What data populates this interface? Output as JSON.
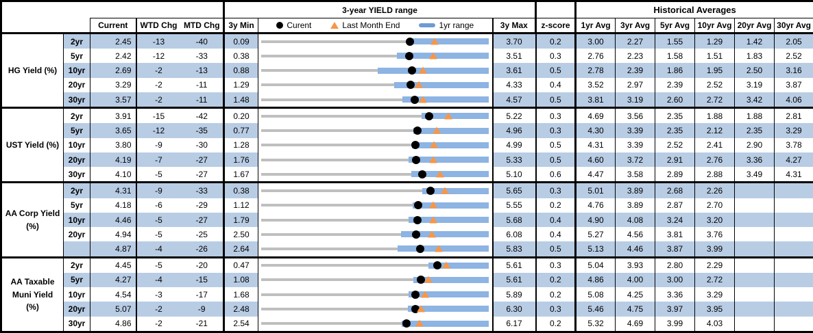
{
  "header": {
    "range_title": "3-year YIELD range",
    "hist_title": "Historical Averages",
    "current": "Current",
    "wtd": "WTD Chg",
    "mtd": "MTD Chg",
    "min": "3y Min",
    "max": "3y Max",
    "z": "z-score",
    "avg_cols": [
      "1yr Avg",
      "3yr Avg",
      "5yr Avg",
      "10yr Avg",
      "20yr Avg",
      "30yr Avg"
    ],
    "legend_current": "Curent",
    "legend_last_month": "Last Month End",
    "legend_range": "1yr range"
  },
  "colors": {
    "row_shade": "#b8cce4",
    "bar_blue": "#8db4e2",
    "track_gray": "#bfbfbf",
    "triangle_orange": "#f79646",
    "dot_black": "#000000"
  },
  "chart_data": {
    "type": "table",
    "note": "Each row has a bullet chart spanning 3y Min to 3y Max; blue bar = 1yr range (high = 3y max), black dot = current, orange triangle = last month end.",
    "sections": [
      {
        "label": "HG Yield (%)",
        "rows": [
          {
            "tenor": "2yr",
            "current": "2.45",
            "wtd": "-13",
            "mtd": "-40",
            "min": "0.09",
            "max": "3.70",
            "z": "0.2",
            "avgs": [
              "3.00",
              "2.27",
              "1.55",
              "1.29",
              "1.42",
              "2.05"
            ],
            "bar": {
              "min": 0.09,
              "max": 3.7,
              "cur": 2.45,
              "lm": 2.85,
              "lo": 2.47
            }
          },
          {
            "tenor": "5yr",
            "current": "2.42",
            "wtd": "-12",
            "mtd": "-33",
            "min": "0.38",
            "max": "3.51",
            "z": "0.3",
            "avgs": [
              "2.76",
              "2.23",
              "1.58",
              "1.51",
              "1.83",
              "2.52"
            ],
            "bar": {
              "min": 0.38,
              "max": 3.51,
              "cur": 2.42,
              "lm": 2.75,
              "lo": 2.25
            }
          },
          {
            "tenor": "10yr",
            "current": "2.69",
            "wtd": "-2",
            "mtd": "-13",
            "min": "0.88",
            "max": "3.61",
            "z": "0.5",
            "avgs": [
              "2.78",
              "2.39",
              "1.86",
              "1.95",
              "2.50",
              "3.16"
            ],
            "bar": {
              "min": 0.88,
              "max": 3.61,
              "cur": 2.69,
              "lm": 2.82,
              "lo": 2.28
            }
          },
          {
            "tenor": "20yr",
            "current": "3.29",
            "wtd": "-2",
            "mtd": "-11",
            "min": "1.29",
            "max": "4.33",
            "z": "0.4",
            "avgs": [
              "3.52",
              "2.97",
              "2.39",
              "2.52",
              "3.19",
              "3.87"
            ],
            "bar": {
              "min": 1.29,
              "max": 4.33,
              "cur": 3.29,
              "lm": 3.4,
              "lo": 3.07
            }
          },
          {
            "tenor": "30yr",
            "current": "3.57",
            "wtd": "-2",
            "mtd": "-11",
            "min": "1.48",
            "max": "4.57",
            "z": "0.5",
            "avgs": [
              "3.81",
              "3.19",
              "2.60",
              "2.72",
              "3.42",
              "4.06"
            ],
            "bar": {
              "min": 1.48,
              "max": 4.57,
              "cur": 3.57,
              "lm": 3.68,
              "lo": 3.4
            }
          }
        ]
      },
      {
        "label": "UST Yield (%)",
        "rows": [
          {
            "tenor": "2yr",
            "current": "3.91",
            "wtd": "-15",
            "mtd": "-42",
            "min": "0.20",
            "max": "5.22",
            "z": "0.3",
            "avgs": [
              "4.69",
              "3.56",
              "2.35",
              "1.88",
              "1.88",
              "2.81"
            ],
            "bar": {
              "min": 0.2,
              "max": 5.22,
              "cur": 3.91,
              "lm": 4.33,
              "lo": 3.75
            }
          },
          {
            "tenor": "5yr",
            "current": "3.65",
            "wtd": "-12",
            "mtd": "-35",
            "min": "0.77",
            "max": "4.96",
            "z": "0.3",
            "avgs": [
              "4.30",
              "3.39",
              "2.35",
              "2.12",
              "2.35",
              "3.29"
            ],
            "bar": {
              "min": 0.77,
              "max": 4.96,
              "cur": 3.65,
              "lm": 4.0,
              "lo": 3.57
            }
          },
          {
            "tenor": "10yr",
            "current": "3.80",
            "wtd": "-9",
            "mtd": "-30",
            "min": "1.28",
            "max": "4.99",
            "z": "0.5",
            "avgs": [
              "4.31",
              "3.39",
              "2.52",
              "2.41",
              "2.90",
              "3.78"
            ],
            "bar": {
              "min": 1.28,
              "max": 4.99,
              "cur": 3.8,
              "lm": 4.1,
              "lo": 3.74
            }
          },
          {
            "tenor": "20yr",
            "current": "4.19",
            "wtd": "-7",
            "mtd": "-27",
            "min": "1.76",
            "max": "5.33",
            "z": "0.5",
            "avgs": [
              "4.60",
              "3.72",
              "2.91",
              "2.76",
              "3.36",
              "4.27"
            ],
            "bar": {
              "min": 1.76,
              "max": 5.33,
              "cur": 4.19,
              "lm": 4.46,
              "lo": 4.08
            }
          },
          {
            "tenor": "30yr",
            "current": "4.10",
            "wtd": "-5",
            "mtd": "-27",
            "min": "1.67",
            "max": "5.10",
            "z": "0.6",
            "avgs": [
              "4.47",
              "3.58",
              "2.89",
              "2.88",
              "3.49",
              "4.31"
            ],
            "bar": {
              "min": 1.67,
              "max": 5.1,
              "cur": 4.1,
              "lm": 4.37,
              "lo": 3.94
            }
          }
        ]
      },
      {
        "label": "AA Corp Yield\n(%)",
        "rows": [
          {
            "tenor": "2yr",
            "current": "4.31",
            "wtd": "-9",
            "mtd": "-33",
            "min": "0.38",
            "max": "5.65",
            "z": "0.3",
            "avgs": [
              "5.01",
              "3.89",
              "2.68",
              "2.26",
              "",
              ""
            ],
            "bar": {
              "min": 0.38,
              "max": 5.65,
              "cur": 4.31,
              "lm": 4.64,
              "lo": 4.11
            }
          },
          {
            "tenor": "5yr",
            "current": "4.18",
            "wtd": "-6",
            "mtd": "-29",
            "min": "1.12",
            "max": "5.55",
            "z": "0.2",
            "avgs": [
              "4.76",
              "3.89",
              "2.87",
              "2.70",
              "",
              ""
            ],
            "bar": {
              "min": 1.12,
              "max": 5.55,
              "cur": 4.18,
              "lm": 4.47,
              "lo": 4.07
            }
          },
          {
            "tenor": "10yr",
            "current": "4.46",
            "wtd": "-5",
            "mtd": "-27",
            "min": "1.79",
            "max": "5.68",
            "z": "0.4",
            "avgs": [
              "4.90",
              "4.08",
              "3.24",
              "3.20",
              "",
              ""
            ],
            "bar": {
              "min": 1.79,
              "max": 5.68,
              "cur": 4.46,
              "lm": 4.73,
              "lo": 4.31
            }
          },
          {
            "tenor": "20yr",
            "current": "4.94",
            "wtd": "-5",
            "mtd": "-25",
            "min": "2.50",
            "max": "6.08",
            "z": "0.4",
            "avgs": [
              "5.27",
              "4.56",
              "3.81",
              "3.76",
              "",
              ""
            ],
            "bar": {
              "min": 2.5,
              "max": 6.08,
              "cur": 4.94,
              "lm": 5.19,
              "lo": 4.7
            }
          },
          {
            "tenor": "",
            "current": "4.87",
            "wtd": "-4",
            "mtd": "-26",
            "min": "2.64",
            "max": "5.83",
            "z": "0.5",
            "avgs": [
              "5.13",
              "4.46",
              "3.87",
              "3.99",
              "",
              ""
            ],
            "bar": {
              "min": 2.64,
              "max": 5.83,
              "cur": 4.87,
              "lm": 5.13,
              "lo": 4.55
            }
          }
        ]
      },
      {
        "label": "AA Taxable\nMuni Yield\n(%)",
        "rows": [
          {
            "tenor": "2yr",
            "current": "4.45",
            "wtd": "-5",
            "mtd": "-20",
            "min": "0.47",
            "max": "5.61",
            "z": "0.3",
            "avgs": [
              "5.04",
              "3.93",
              "2.80",
              "2.29",
              "",
              ""
            ],
            "bar": {
              "min": 0.47,
              "max": 5.61,
              "cur": 4.45,
              "lm": 4.65,
              "lo": 4.25
            }
          },
          {
            "tenor": "5yr",
            "current": "4.27",
            "wtd": "-4",
            "mtd": "-15",
            "min": "1.08",
            "max": "5.61",
            "z": "0.2",
            "avgs": [
              "4.86",
              "4.00",
              "3.00",
              "2.72",
              "",
              ""
            ],
            "bar": {
              "min": 1.08,
              "max": 5.61,
              "cur": 4.27,
              "lm": 4.42,
              "lo": 4.12
            }
          },
          {
            "tenor": "10yr",
            "current": "4.54",
            "wtd": "-3",
            "mtd": "-17",
            "min": "1.68",
            "max": "5.89",
            "z": "0.2",
            "avgs": [
              "5.08",
              "4.25",
              "3.36",
              "3.29",
              "",
              ""
            ],
            "bar": {
              "min": 1.68,
              "max": 5.89,
              "cur": 4.54,
              "lm": 4.71,
              "lo": 4.41
            }
          },
          {
            "tenor": "20yr",
            "current": "5.07",
            "wtd": "-2",
            "mtd": "-9",
            "min": "2.48",
            "max": "6.30",
            "z": "0.3",
            "avgs": [
              "5.46",
              "4.75",
              "3.97",
              "3.95",
              "",
              ""
            ],
            "bar": {
              "min": 2.48,
              "max": 6.3,
              "cur": 5.07,
              "lm": 5.16,
              "lo": 4.94
            }
          },
          {
            "tenor": "30yr",
            "current": "4.86",
            "wtd": "-2",
            "mtd": "-21",
            "min": "2.54",
            "max": "6.17",
            "z": "0.2",
            "avgs": [
              "5.32",
              "4.69",
              "3.99",
              "4.03",
              "",
              ""
            ],
            "bar": {
              "min": 2.54,
              "max": 6.17,
              "cur": 4.86,
              "lm": 5.07,
              "lo": 4.78
            }
          }
        ]
      }
    ]
  }
}
